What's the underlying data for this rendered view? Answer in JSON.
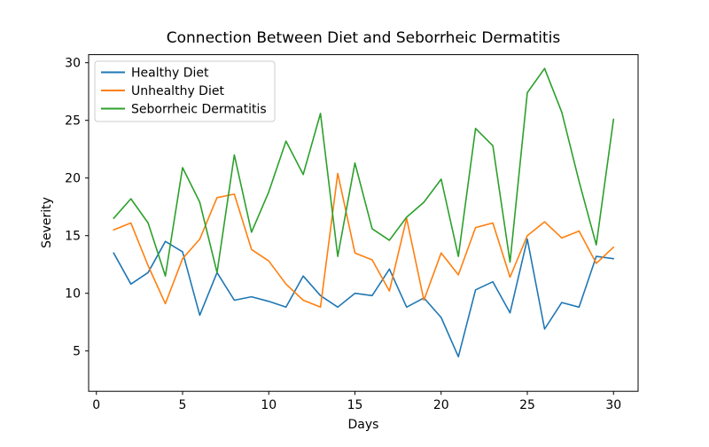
{
  "title": "Connection Between Diet and Seborrheic Dermatitis",
  "chart_data": {
    "type": "line",
    "title": "Connection Between Diet and Seborrheic Dermatitis",
    "xlabel": "Days",
    "ylabel": "Severity",
    "grid": false,
    "legend_position": "upper left",
    "background_color": "#ffffff",
    "axes_color": "#000000",
    "legend_border_color": "#cccccc",
    "xlim": [
      -0.45,
      31.43
    ],
    "ylim": [
      1.5,
      30.7
    ],
    "xticks": [
      0,
      5,
      10,
      15,
      20,
      25,
      30
    ],
    "yticks": [
      5,
      10,
      15,
      20,
      25,
      30
    ],
    "x": [
      1,
      2,
      3,
      4,
      5,
      6,
      7,
      8,
      9,
      10,
      11,
      12,
      13,
      14,
      15,
      16,
      17,
      18,
      19,
      20,
      21,
      22,
      23,
      24,
      25,
      26,
      27,
      28,
      29,
      30
    ],
    "series": [
      {
        "name": "Healthy Diet",
        "color": "#1f77b4",
        "values": [
          13.5,
          10.8,
          11.8,
          14.5,
          13.6,
          8.1,
          11.8,
          9.4,
          9.7,
          9.3,
          8.8,
          11.5,
          9.8,
          8.8,
          10.0,
          9.8,
          12.1,
          8.8,
          9.6,
          7.9,
          4.5,
          10.3,
          11.0,
          8.3,
          14.7,
          6.9,
          9.2,
          8.8,
          13.2,
          13.0
        ]
      },
      {
        "name": "Unhealthy Diet",
        "color": "#ff7f0e",
        "values": [
          15.5,
          16.1,
          12.4,
          9.1,
          13.0,
          14.7,
          18.3,
          18.6,
          13.8,
          12.8,
          10.8,
          9.4,
          8.8,
          20.4,
          13.5,
          12.9,
          10.2,
          16.5,
          9.4,
          13.5,
          11.6,
          15.7,
          16.1,
          11.4,
          15.0,
          16.2,
          14.8,
          15.4,
          12.6,
          14.0
        ]
      },
      {
        "name": "Seborrheic Dermatitis",
        "color": "#2ca02c",
        "values": [
          16.5,
          18.2,
          16.1,
          11.5,
          20.9,
          17.9,
          11.8,
          22.0,
          15.3,
          18.8,
          23.2,
          20.3,
          25.6,
          13.2,
          21.3,
          15.6,
          14.6,
          16.6,
          17.9,
          19.9,
          13.2,
          24.3,
          22.8,
          12.7,
          27.4,
          29.5,
          25.7,
          19.7,
          14.2,
          25.1
        ]
      }
    ]
  }
}
